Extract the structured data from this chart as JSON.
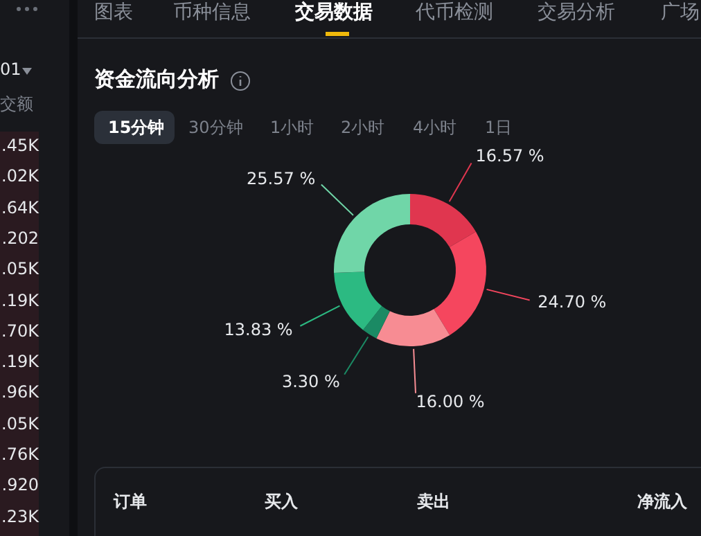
{
  "chart_data": {
    "type": "donut",
    "title": "资金流向分析",
    "categories": [
      null,
      null,
      null,
      null,
      null,
      null
    ],
    "values": [
      16.57,
      24.7,
      16.0,
      3.3,
      13.83,
      25.57
    ],
    "colors": [
      "#e0364f",
      "#f5465e",
      "#f78c93",
      "#1b8a64",
      "#2cba82",
      "#70d6a8"
    ],
    "value_labels": [
      "16.57 %",
      "24.70 %",
      "16.00 %",
      "3.30 %",
      "13.83 %",
      "25.57 %"
    ],
    "annotations": [
      "图表",
      "币种信息",
      "交易数据",
      "代币检测",
      "交易分析",
      "广场",
      "15分钟",
      "30分钟",
      "1小时",
      "2小时",
      "4小时",
      "1日",
      "订单",
      "买入",
      "卖出",
      "净流入",
      "01",
      "交额",
      ".45K",
      ".02K",
      ".64K",
      ".202",
      ".05K",
      ".19K",
      ".70K",
      ".19K",
      ".96K",
      ".05K",
      ".76K",
      ".920",
      ".23K"
    ]
  }
}
